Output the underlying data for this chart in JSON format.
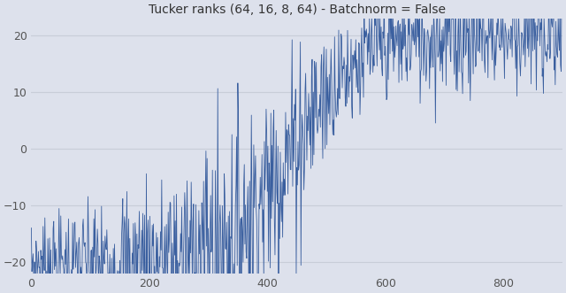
{
  "title": "Tucker ranks (64, 16, 8, 64) - Batchnorm = False",
  "xlim": [
    0,
    900
  ],
  "ylim": [
    -22,
    23
  ],
  "xticks": [
    0,
    200,
    400,
    600,
    800
  ],
  "yticks": [
    -20,
    -10,
    0,
    10,
    20
  ],
  "line_color": "#3a5f9f",
  "background_color": "#dde1ec",
  "n_points": 900,
  "seed": 7
}
